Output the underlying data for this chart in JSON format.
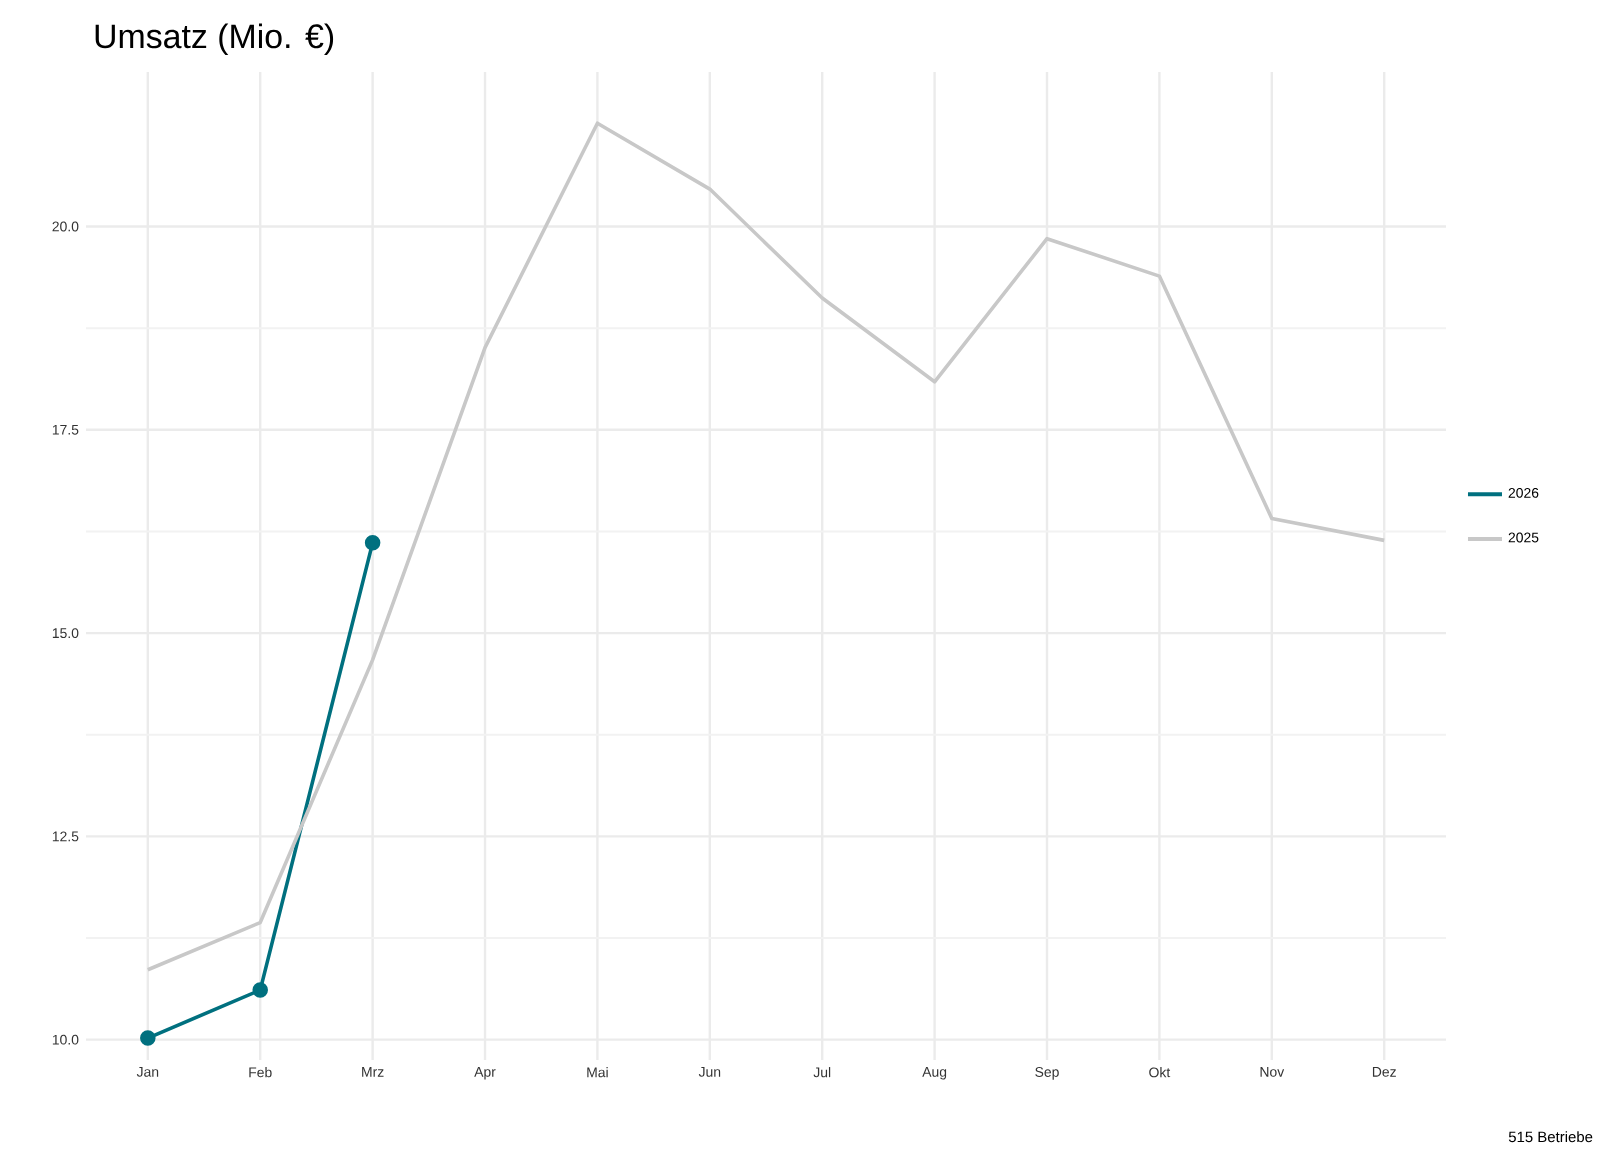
{
  "chart_data": {
    "type": "line",
    "title": "Umsatz (Mio. €)",
    "categories": [
      "Jan",
      "Feb",
      "Mrz",
      "Apr",
      "Mai",
      "Jun",
      "Jul",
      "Aug",
      "Sep",
      "Okt",
      "Nov",
      "Dez"
    ],
    "series": [
      {
        "name": "2026",
        "color": "#00707f",
        "marker": "circle",
        "values": [
          10.02,
          10.61,
          16.11,
          null,
          null,
          null,
          null,
          null,
          null,
          null,
          null,
          null
        ]
      },
      {
        "name": "2025",
        "color": "#c8c8c8",
        "marker": "none",
        "values": [
          10.86,
          11.44,
          14.67,
          18.51,
          21.27,
          20.46,
          19.12,
          18.09,
          19.85,
          19.39,
          16.41,
          16.14
        ]
      }
    ],
    "ylim": [
      9.75,
      21.9
    ],
    "yticks": [
      {
        "value": 10,
        "label": "10.0"
      },
      12.5,
      {
        "value": 15,
        "label": "15.0"
      },
      17.5,
      {
        "value": 20,
        "label": "20.0"
      }
    ],
    "grid": true,
    "legend": "right",
    "line_style": "solid",
    "annotations": [
      "515 Betriebe"
    ]
  }
}
